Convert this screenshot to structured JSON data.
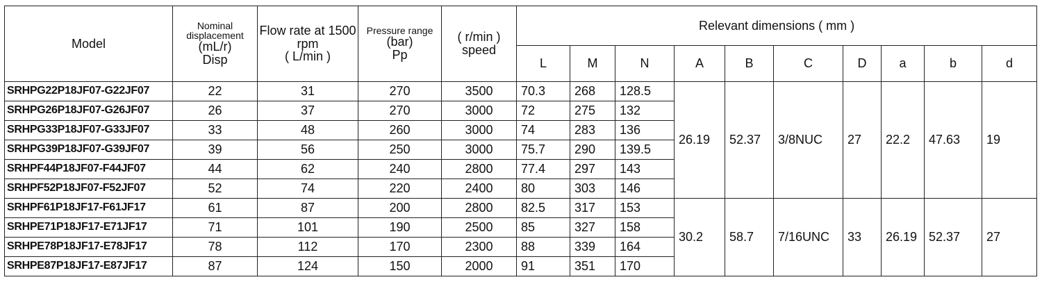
{
  "table": {
    "header": {
      "model": "Model",
      "displacement": [
        "Nominal displacement",
        "(mL/r)",
        "Disp"
      ],
      "flow_rate": [
        "Flow rate at 1500 rpm",
        "( L/min )"
      ],
      "pressure": [
        "Pressure range",
        "(bar)",
        "Pp"
      ],
      "speed": [
        "( r/min )",
        "speed"
      ],
      "dimensions": "Relevant dimensions ( mm )",
      "dimension_columns": [
        "L",
        "M",
        "N",
        "A",
        "B",
        "C",
        "D",
        "a",
        "b",
        "d"
      ]
    },
    "rows": [
      [
        "SRHPG22P18JF07-G22JF07",
        22,
        31,
        270,
        3500,
        70.3,
        268,
        128.5,
        26.19,
        52.37,
        "3/8NUC",
        27,
        22.2,
        47.63,
        19
      ],
      [
        "SRHPG26P18JF07-G26JF07",
        26,
        37,
        270,
        3000,
        72,
        275,
        132
      ],
      [
        "SRHPG33P18JF07-G33JF07",
        33,
        48,
        260,
        3000,
        74,
        283,
        136
      ],
      [
        "SRHPG39P18JF07-G39JF07",
        39,
        56,
        250,
        3000,
        75.7,
        290,
        139.5
      ],
      [
        "SRHPF44P18JF07-F44JF07",
        44,
        62,
        240,
        2800,
        77.4,
        297,
        143
      ],
      [
        "SRHPF52P18JF07-F52JF07",
        52,
        74,
        220,
        2400,
        80,
        303,
        146
      ],
      [
        "SRHPF61P18JF17-F61JF17",
        61,
        87,
        200,
        2800,
        82.5,
        317,
        153,
        30.2,
        58.7,
        "7/16UNC",
        33,
        26.19,
        52.37,
        27
      ],
      [
        "SRHPE71P18JF17-E71JF17",
        71,
        101,
        190,
        2500,
        85,
        327,
        158
      ],
      [
        "SRHPE78P18JF17-E78JF17",
        78,
        112,
        170,
        2300,
        88,
        339,
        164
      ],
      [
        "SRHPE87P18JF17-E87JF17",
        87,
        124,
        150,
        2000,
        91,
        351,
        170
      ]
    ]
  }
}
